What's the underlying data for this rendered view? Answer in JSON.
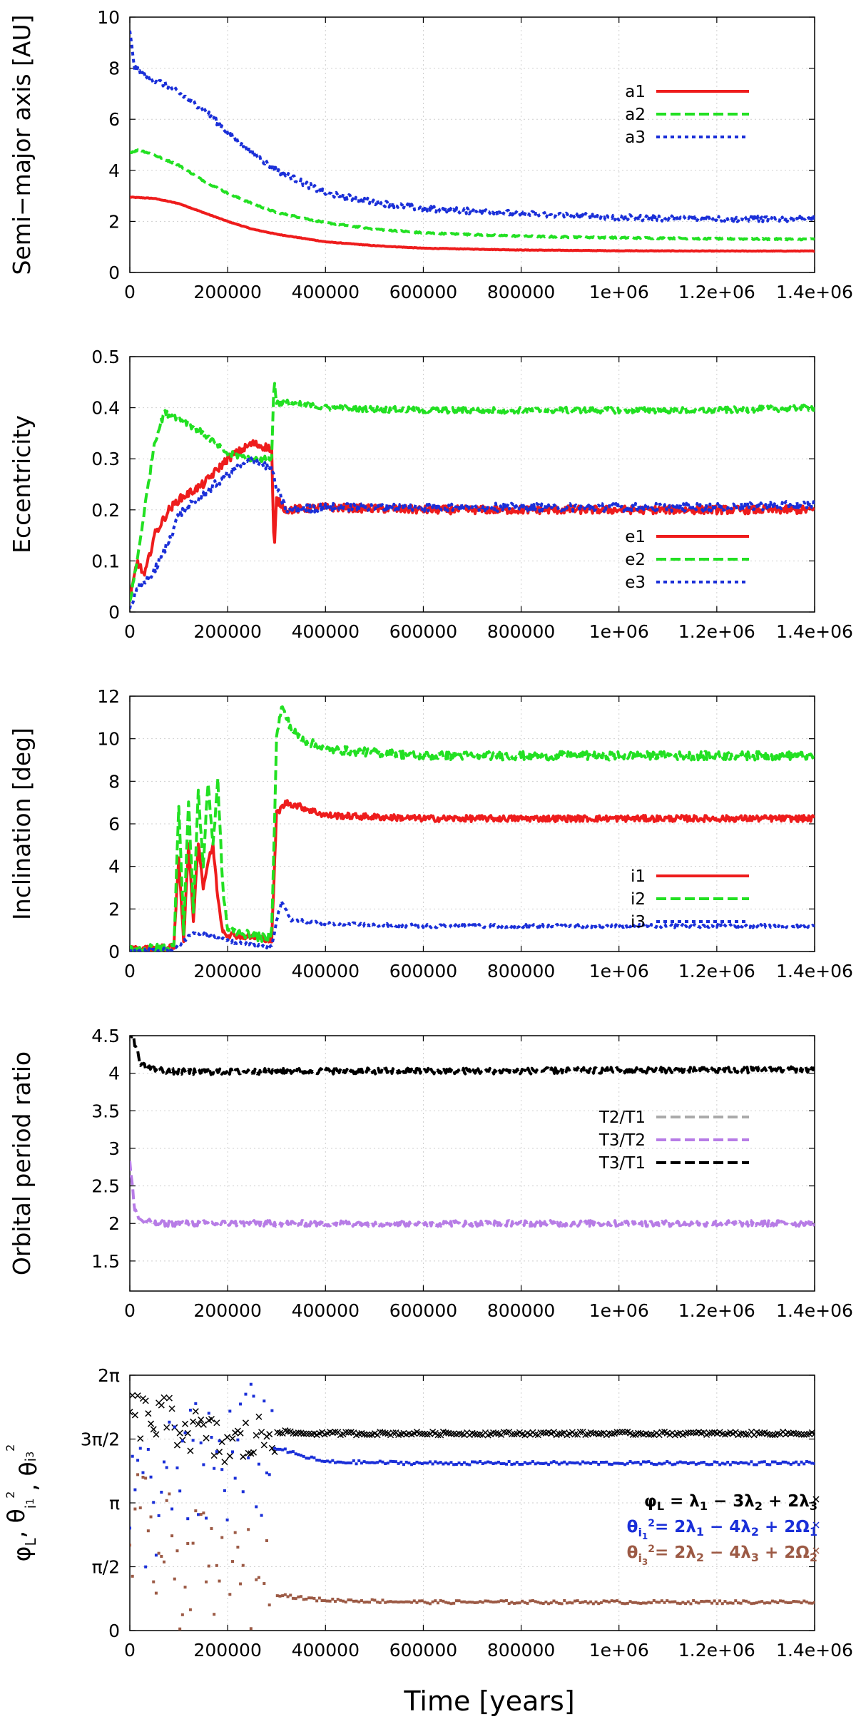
{
  "figure": {
    "xlabel": "Time [years]"
  },
  "chart_data": [
    {
      "type": "line",
      "ylabel": "Semi−major axis [AU]",
      "xlim": [
        0,
        1400000
      ],
      "ylim": [
        0,
        10
      ],
      "xticks": [
        "0",
        "200000",
        "400000",
        "600000",
        "800000",
        "1e+06",
        "1.2e+06",
        "1.4e+06"
      ],
      "yticks": [
        "0",
        "2",
        "4",
        "6",
        "8",
        "10"
      ],
      "legend_position": "top-right",
      "grid": true,
      "series": [
        {
          "name": "a1",
          "color": "#ee1c1c",
          "dash": "solid",
          "noise": 0.01,
          "x": [
            0,
            50000,
            100000,
            150000,
            200000,
            250000,
            300000,
            400000,
            500000,
            600000,
            800000,
            1000000,
            1200000,
            1400000
          ],
          "y": [
            2.95,
            2.9,
            2.7,
            2.35,
            2.0,
            1.7,
            1.5,
            1.2,
            1.05,
            0.95,
            0.88,
            0.85,
            0.84,
            0.84
          ]
        },
        {
          "name": "a2",
          "color": "#22e022",
          "dash": "dashed",
          "noise": 0.03,
          "x": [
            0,
            20000,
            50000,
            100000,
            150000,
            200000,
            250000,
            300000,
            400000,
            500000,
            600000,
            800000,
            1000000,
            1200000,
            1400000
          ],
          "y": [
            4.7,
            4.8,
            4.6,
            4.2,
            3.6,
            3.1,
            2.7,
            2.35,
            1.95,
            1.7,
            1.55,
            1.42,
            1.36,
            1.32,
            1.3
          ]
        },
        {
          "name": "a3",
          "color": "#1a2fd8",
          "dash": "dotted",
          "noise": 0.12,
          "x": [
            0,
            10000,
            30000,
            80000,
            150000,
            200000,
            250000,
            300000,
            400000,
            500000,
            600000,
            800000,
            1000000,
            1200000,
            1400000
          ],
          "y": [
            9.4,
            8.0,
            7.7,
            7.3,
            6.4,
            5.5,
            4.7,
            4.0,
            3.1,
            2.75,
            2.5,
            2.3,
            2.15,
            2.1,
            2.1
          ]
        }
      ]
    },
    {
      "type": "line",
      "ylabel": "Eccentricity",
      "xlim": [
        0,
        1400000
      ],
      "ylim": [
        0,
        0.5
      ],
      "xticks": [
        "0",
        "200000",
        "400000",
        "600000",
        "800000",
        "1e+06",
        "1.2e+06",
        "1.4e+06"
      ],
      "yticks": [
        "0",
        "0.1",
        "0.2",
        "0.3",
        "0.4",
        "0.5"
      ],
      "legend_position": "bottom-right",
      "grid": true,
      "series": [
        {
          "name": "e1",
          "color": "#ee1c1c",
          "dash": "solid",
          "noise": 0.008,
          "x": [
            0,
            15000,
            30000,
            50000,
            80000,
            100000,
            150000,
            200000,
            250000,
            290000,
            295000,
            300000,
            320000,
            400000,
            600000,
            800000,
            1000000,
            1200000,
            1400000
          ],
          "y": [
            0.02,
            0.1,
            0.07,
            0.15,
            0.2,
            0.22,
            0.25,
            0.3,
            0.33,
            0.32,
            0.11,
            0.22,
            0.2,
            0.205,
            0.2,
            0.2,
            0.2,
            0.2,
            0.2
          ]
        },
        {
          "name": "e2",
          "color": "#22e022",
          "dash": "dashed",
          "noise": 0.006,
          "x": [
            0,
            15000,
            30000,
            50000,
            70000,
            100000,
            150000,
            200000,
            250000,
            290000,
            295000,
            300000,
            320000,
            400000,
            600000,
            800000,
            1000000,
            1200000,
            1400000
          ],
          "y": [
            0.02,
            0.1,
            0.2,
            0.33,
            0.39,
            0.38,
            0.35,
            0.31,
            0.3,
            0.3,
            0.46,
            0.41,
            0.41,
            0.4,
            0.395,
            0.395,
            0.395,
            0.395,
            0.4
          ]
        },
        {
          "name": "e3",
          "color": "#1a2fd8",
          "dash": "dotted",
          "noise": 0.008,
          "x": [
            0,
            20000,
            50000,
            80000,
            100000,
            150000,
            200000,
            250000,
            290000,
            300000,
            320000,
            400000,
            600000,
            800000,
            1000000,
            1200000,
            1400000
          ],
          "y": [
            0.01,
            0.05,
            0.08,
            0.14,
            0.19,
            0.23,
            0.27,
            0.3,
            0.28,
            0.24,
            0.2,
            0.205,
            0.205,
            0.205,
            0.205,
            0.205,
            0.21
          ]
        }
      ]
    },
    {
      "type": "line",
      "ylabel": "Inclination [deg]",
      "xlim": [
        0,
        1400000
      ],
      "ylim": [
        0,
        12
      ],
      "xticks": [
        "0",
        "200000",
        "400000",
        "600000",
        "800000",
        "1e+06",
        "1.2e+06",
        "1.4e+06"
      ],
      "yticks": [
        "0",
        "2",
        "4",
        "6",
        "8",
        "10",
        "12"
      ],
      "legend_position": "bottom-right",
      "grid": true,
      "series": [
        {
          "name": "i1",
          "color": "#ee1c1c",
          "dash": "solid",
          "noise": 0.15,
          "x": [
            0,
            90000,
            100000,
            110000,
            120000,
            130000,
            140000,
            150000,
            160000,
            170000,
            180000,
            190000,
            200000,
            280000,
            290000,
            300000,
            320000,
            350000,
            400000,
            600000,
            800000,
            1000000,
            1200000,
            1400000
          ],
          "y": [
            0.1,
            0.2,
            4.5,
            0.5,
            5.0,
            1.5,
            5.2,
            3.0,
            4.2,
            5.0,
            2.5,
            1.0,
            0.8,
            0.6,
            0.5,
            6.5,
            7.0,
            6.8,
            6.4,
            6.25,
            6.25,
            6.25,
            6.25,
            6.25
          ]
        },
        {
          "name": "i2",
          "color": "#22e022",
          "dash": "dashed",
          "noise": 0.2,
          "x": [
            0,
            90000,
            100000,
            110000,
            120000,
            130000,
            140000,
            150000,
            160000,
            170000,
            180000,
            190000,
            200000,
            280000,
            290000,
            300000,
            310000,
            330000,
            350000,
            400000,
            600000,
            800000,
            1000000,
            1200000,
            1400000
          ],
          "y": [
            0.1,
            0.2,
            7.0,
            1.0,
            7.0,
            2.0,
            7.5,
            4.0,
            8.0,
            5.0,
            8.0,
            3.0,
            1.0,
            0.6,
            1.0,
            10.0,
            11.5,
            10.5,
            10.0,
            9.5,
            9.2,
            9.2,
            9.2,
            9.2,
            9.2
          ]
        },
        {
          "name": "i3",
          "color": "#1a2fd8",
          "dash": "dotted",
          "noise": 0.08,
          "x": [
            0,
            90000,
            100000,
            130000,
            160000,
            200000,
            250000,
            290000,
            300000,
            310000,
            330000,
            400000,
            600000,
            800000,
            1000000,
            1200000,
            1400000
          ],
          "y": [
            0.05,
            0.1,
            0.3,
            0.9,
            0.8,
            0.5,
            0.3,
            0.2,
            1.5,
            2.3,
            1.5,
            1.3,
            1.2,
            1.2,
            1.2,
            1.2,
            1.2
          ]
        }
      ]
    },
    {
      "type": "line",
      "ylabel": "Orbital period ratio",
      "xlim": [
        0,
        1400000
      ],
      "ylim": [
        1.1,
        4.5
      ],
      "ytick_values": [
        1.5,
        2,
        2.5,
        3,
        3.5,
        4,
        4.5
      ],
      "xticks": [
        "0",
        "200000",
        "400000",
        "600000",
        "800000",
        "1e+06",
        "1.2e+06",
        "1.4e+06"
      ],
      "yticks": [
        "1.5",
        "2",
        "2.5",
        "3",
        "3.5",
        "4",
        "4.5"
      ],
      "legend_position": "center-right",
      "grid": true,
      "series": [
        {
          "name": "T2/T1",
          "color": "#aaaaaa",
          "dash": "dashed",
          "noise": 0.0,
          "x": [],
          "y": []
        },
        {
          "name": "T3/T2",
          "color": "#b77ce6",
          "dash": "dashed",
          "noise": 0.04,
          "x": [
            0,
            5000,
            10000,
            20000,
            50000,
            100000,
            200000,
            400000,
            600000,
            800000,
            1000000,
            1200000,
            1400000
          ],
          "y": [
            2.8,
            2.5,
            2.2,
            2.05,
            2.0,
            2.0,
            2.0,
            2.0,
            2.0,
            2.0,
            2.0,
            2.0,
            2.0
          ]
        },
        {
          "name": "T3/T1",
          "color": "#000000",
          "dash": "dashed",
          "noise": 0.04,
          "x": [
            0,
            15000,
            20000,
            30000,
            50000,
            100000,
            200000,
            400000,
            600000,
            800000,
            1000000,
            1200000,
            1400000
          ],
          "y": [
            4.6,
            4.3,
            4.15,
            4.1,
            4.05,
            4.02,
            4.02,
            4.03,
            4.03,
            4.03,
            4.04,
            4.04,
            4.05
          ]
        }
      ]
    },
    {
      "type": "scatter",
      "ylabel": "φL, θi1², θi3²",
      "xlim": [
        0,
        1400000
      ],
      "ylim": [
        0,
        6.2832
      ],
      "ytick_values": [
        0,
        1.5708,
        3.1416,
        4.7124,
        6.2832
      ],
      "xticks": [
        "0",
        "200000",
        "400000",
        "600000",
        "800000",
        "1e+06",
        "1.2e+06",
        "1.4e+06"
      ],
      "yticks": [
        "0",
        "π/2",
        "π",
        "3π/2",
        "2π"
      ],
      "legend_position": "center-right",
      "grid": true,
      "series": [
        {
          "name": "φL = λ1 − 3λ2 + 2λ3",
          "color": "#000000",
          "marker": "x",
          "x": [
            0,
            100000,
            200000,
            300000,
            350000,
            400000,
            600000,
            800000,
            1000000,
            1200000,
            1400000
          ],
          "y": [
            5.3,
            5.1,
            4.5,
            4.9,
            4.85,
            4.85,
            4.85,
            4.85,
            4.85,
            4.85,
            4.85
          ],
          "spread_x": [
            0,
            300000
          ],
          "spread": 0.6,
          "settled": 0.04
        },
        {
          "name": "θi1² = 2λ1 − 4λ2 + 2Ω1",
          "color": "#1a2fd8",
          "marker": "dot",
          "x": [
            0,
            150000,
            300000,
            350000,
            400000,
            600000,
            800000,
            1000000,
            1200000,
            1400000
          ],
          "y": [
            3.0,
            4.0,
            4.5,
            4.3,
            4.15,
            4.12,
            4.12,
            4.12,
            4.12,
            4.12
          ],
          "spread_x": [
            0,
            300000
          ],
          "spread": 1.8,
          "settled": 0.04
        },
        {
          "name": "θi3² = 2λ2 − 4λ3 + 2Ω2",
          "color": "#9c5a45",
          "marker": "dot",
          "x": [
            0,
            100000,
            200000,
            300000,
            350000,
            400000,
            600000,
            800000,
            1000000,
            1200000,
            1400000
          ],
          "y": [
            2.5,
            1.6,
            1.0,
            0.9,
            0.8,
            0.75,
            0.7,
            0.7,
            0.7,
            0.7,
            0.7
          ],
          "spread_x": [
            0,
            300000
          ],
          "spread": 1.6,
          "settled": 0.04
        }
      ]
    }
  ],
  "legend5": {
    "l1": {
      "main": "φ",
      "sub1": "L",
      "rest": " = λ",
      "sub2": "1",
      "rest2": " − 3λ",
      "sub3": "2",
      "rest3": " + 2λ",
      "sub4": "3"
    },
    "l2": {
      "main": "θ",
      "sub1": "i",
      "sub1b": "1",
      "sup1": "2",
      "rest": "= 2λ",
      "sub2": "1",
      "rest2": " − 4λ",
      "sub3": "2",
      "rest3": " + 2Ω",
      "sub4": "1"
    },
    "l3": {
      "main": "θ",
      "sub1": "i",
      "sub1b": "3",
      "sup1": "2",
      "rest": "= 2λ",
      "sub2": "2",
      "rest2": " − 4λ",
      "sub3": "3",
      "rest3": " + 2Ω",
      "sub4": "2"
    }
  }
}
